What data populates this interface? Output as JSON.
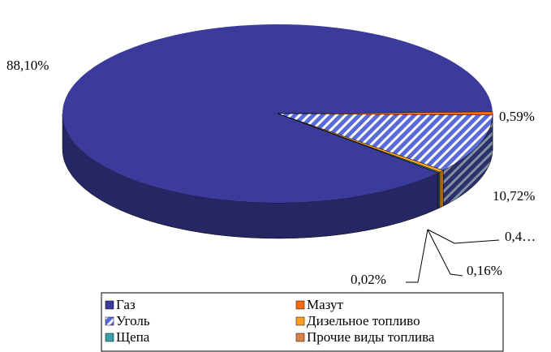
{
  "chart_data": {
    "type": "pie",
    "categories": [
      "Газ",
      "Мазут",
      "Уголь",
      "Дизельное топливо",
      "Щепа",
      "Прочие виды топлива"
    ],
    "values": [
      88.1,
      0.59,
      10.72,
      0.41,
      0.16,
      0.02
    ],
    "value_labels": [
      "88,10%",
      "0,59%",
      "10,72%",
      "0,4…",
      "0,16%",
      "0,02%"
    ],
    "colors": [
      "#3b3b9c",
      "#ff6a10",
      "#5a6ad8",
      "#ffa020",
      "#3aa0a8",
      "#e0804a"
    ]
  }
}
